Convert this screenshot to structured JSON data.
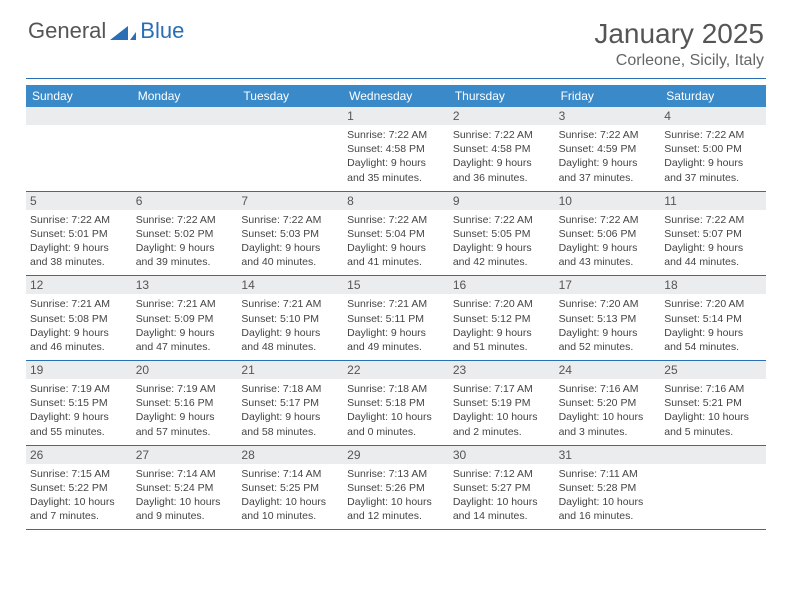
{
  "logo": {
    "text1": "General",
    "text2": "Blue"
  },
  "title": "January 2025",
  "location": "Corleone, Sicily, Italy",
  "colors": {
    "header_bg": "#3a8ac9",
    "accent": "#2a6fb5",
    "daynum_bg": "#ebecee",
    "text": "#444444",
    "title_color": "#555555",
    "background": "#ffffff"
  },
  "day_names": [
    "Sunday",
    "Monday",
    "Tuesday",
    "Wednesday",
    "Thursday",
    "Friday",
    "Saturday"
  ],
  "weeks": [
    [
      null,
      null,
      null,
      {
        "n": "1",
        "sr": "7:22 AM",
        "ss": "4:58 PM",
        "dl": "9 hours and 35 minutes."
      },
      {
        "n": "2",
        "sr": "7:22 AM",
        "ss": "4:58 PM",
        "dl": "9 hours and 36 minutes."
      },
      {
        "n": "3",
        "sr": "7:22 AM",
        "ss": "4:59 PM",
        "dl": "9 hours and 37 minutes."
      },
      {
        "n": "4",
        "sr": "7:22 AM",
        "ss": "5:00 PM",
        "dl": "9 hours and 37 minutes."
      }
    ],
    [
      {
        "n": "5",
        "sr": "7:22 AM",
        "ss": "5:01 PM",
        "dl": "9 hours and 38 minutes."
      },
      {
        "n": "6",
        "sr": "7:22 AM",
        "ss": "5:02 PM",
        "dl": "9 hours and 39 minutes."
      },
      {
        "n": "7",
        "sr": "7:22 AM",
        "ss": "5:03 PM",
        "dl": "9 hours and 40 minutes."
      },
      {
        "n": "8",
        "sr": "7:22 AM",
        "ss": "5:04 PM",
        "dl": "9 hours and 41 minutes."
      },
      {
        "n": "9",
        "sr": "7:22 AM",
        "ss": "5:05 PM",
        "dl": "9 hours and 42 minutes."
      },
      {
        "n": "10",
        "sr": "7:22 AM",
        "ss": "5:06 PM",
        "dl": "9 hours and 43 minutes."
      },
      {
        "n": "11",
        "sr": "7:22 AM",
        "ss": "5:07 PM",
        "dl": "9 hours and 44 minutes."
      }
    ],
    [
      {
        "n": "12",
        "sr": "7:21 AM",
        "ss": "5:08 PM",
        "dl": "9 hours and 46 minutes."
      },
      {
        "n": "13",
        "sr": "7:21 AM",
        "ss": "5:09 PM",
        "dl": "9 hours and 47 minutes."
      },
      {
        "n": "14",
        "sr": "7:21 AM",
        "ss": "5:10 PM",
        "dl": "9 hours and 48 minutes."
      },
      {
        "n": "15",
        "sr": "7:21 AM",
        "ss": "5:11 PM",
        "dl": "9 hours and 49 minutes."
      },
      {
        "n": "16",
        "sr": "7:20 AM",
        "ss": "5:12 PM",
        "dl": "9 hours and 51 minutes."
      },
      {
        "n": "17",
        "sr": "7:20 AM",
        "ss": "5:13 PM",
        "dl": "9 hours and 52 minutes."
      },
      {
        "n": "18",
        "sr": "7:20 AM",
        "ss": "5:14 PM",
        "dl": "9 hours and 54 minutes."
      }
    ],
    [
      {
        "n": "19",
        "sr": "7:19 AM",
        "ss": "5:15 PM",
        "dl": "9 hours and 55 minutes."
      },
      {
        "n": "20",
        "sr": "7:19 AM",
        "ss": "5:16 PM",
        "dl": "9 hours and 57 minutes."
      },
      {
        "n": "21",
        "sr": "7:18 AM",
        "ss": "5:17 PM",
        "dl": "9 hours and 58 minutes."
      },
      {
        "n": "22",
        "sr": "7:18 AM",
        "ss": "5:18 PM",
        "dl": "10 hours and 0 minutes."
      },
      {
        "n": "23",
        "sr": "7:17 AM",
        "ss": "5:19 PM",
        "dl": "10 hours and 2 minutes."
      },
      {
        "n": "24",
        "sr": "7:16 AM",
        "ss": "5:20 PM",
        "dl": "10 hours and 3 minutes."
      },
      {
        "n": "25",
        "sr": "7:16 AM",
        "ss": "5:21 PM",
        "dl": "10 hours and 5 minutes."
      }
    ],
    [
      {
        "n": "26",
        "sr": "7:15 AM",
        "ss": "5:22 PM",
        "dl": "10 hours and 7 minutes."
      },
      {
        "n": "27",
        "sr": "7:14 AM",
        "ss": "5:24 PM",
        "dl": "10 hours and 9 minutes."
      },
      {
        "n": "28",
        "sr": "7:14 AM",
        "ss": "5:25 PM",
        "dl": "10 hours and 10 minutes."
      },
      {
        "n": "29",
        "sr": "7:13 AM",
        "ss": "5:26 PM",
        "dl": "10 hours and 12 minutes."
      },
      {
        "n": "30",
        "sr": "7:12 AM",
        "ss": "5:27 PM",
        "dl": "10 hours and 14 minutes."
      },
      {
        "n": "31",
        "sr": "7:11 AM",
        "ss": "5:28 PM",
        "dl": "10 hours and 16 minutes."
      },
      null
    ]
  ],
  "labels": {
    "sunrise": "Sunrise:",
    "sunset": "Sunset:",
    "daylight": "Daylight:"
  }
}
